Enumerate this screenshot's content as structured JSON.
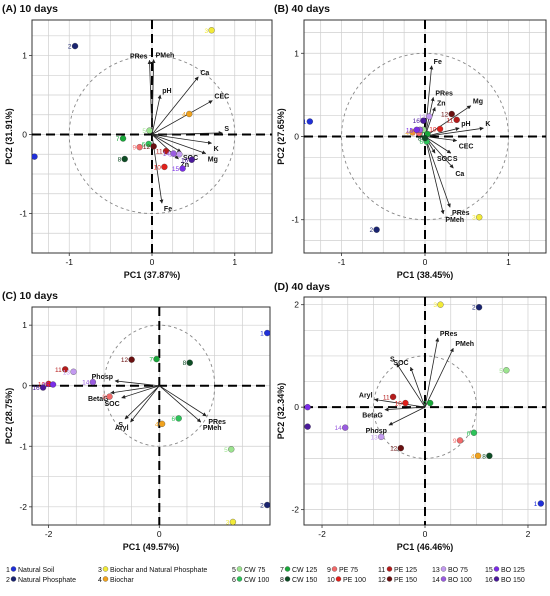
{
  "chart_data": [
    {
      "type": "scatter",
      "title": "(A) 10 days",
      "xlabel": "PC1 (37.87%)",
      "ylabel": "PC2 (31.91%)",
      "xlim": [
        -1.45,
        1.45
      ],
      "ylim": [
        -1.5,
        1.45
      ],
      "xticks": [
        -1,
        0,
        1
      ],
      "yticks": [
        -1,
        0,
        1
      ],
      "circle_radius": 1,
      "points": [
        {
          "id": "1",
          "x": -1.42,
          "y": -0.28
        },
        {
          "id": "2",
          "x": -0.93,
          "y": 1.12
        },
        {
          "id": "3",
          "x": 0.72,
          "y": 1.32
        },
        {
          "id": "4",
          "x": 0.45,
          "y": 0.26
        },
        {
          "id": "5",
          "x": -0.03,
          "y": 0.05
        },
        {
          "id": "6",
          "x": -0.04,
          "y": -0.12
        },
        {
          "id": "7",
          "x": -0.35,
          "y": -0.05
        },
        {
          "id": "8",
          "x": -0.33,
          "y": -0.31
        },
        {
          "id": "9",
          "x": -0.15,
          "y": -0.16
        },
        {
          "id": "10",
          "x": 0.15,
          "y": -0.41
        },
        {
          "id": "11",
          "x": 0.17,
          "y": -0.21
        },
        {
          "id": "12",
          "x": 0.02,
          "y": -0.15
        },
        {
          "id": "13",
          "x": 0.33,
          "y": -0.25
        },
        {
          "id": "14",
          "x": 0.26,
          "y": -0.24
        },
        {
          "id": "15",
          "x": 0.37,
          "y": -0.43
        },
        {
          "id": "16",
          "x": 0.48,
          "y": -0.32
        }
      ],
      "vectors": [
        {
          "label": "PRes",
          "x": -0.03,
          "y": 0.94
        },
        {
          "label": "PMeh",
          "x": 0.02,
          "y": 0.95
        },
        {
          "label": "Ca",
          "x": 0.56,
          "y": 0.73
        },
        {
          "label": "pH",
          "x": 0.1,
          "y": 0.5
        },
        {
          "label": "CEC",
          "x": 0.73,
          "y": 0.43
        },
        {
          "label": "S",
          "x": 0.85,
          "y": 0.02
        },
        {
          "label": "K",
          "x": 0.72,
          "y": -0.11
        },
        {
          "label": "Mg",
          "x": 0.65,
          "y": -0.24
        },
        {
          "label": "SOC",
          "x": 0.35,
          "y": -0.22
        },
        {
          "label": "Zn",
          "x": 0.32,
          "y": -0.31
        },
        {
          "label": "Fe",
          "x": 0.12,
          "y": -0.87
        }
      ]
    },
    {
      "type": "scatter",
      "title": "(B) 40 days",
      "xlabel": "PC1 (38.45%)",
      "ylabel": "PC2 (27.65%)",
      "xlim": [
        -1.45,
        1.45
      ],
      "ylim": [
        -1.4,
        1.4
      ],
      "xticks": [
        -1,
        0,
        1
      ],
      "yticks": [
        -1,
        0,
        1
      ],
      "circle_radius": 1,
      "points": [
        {
          "id": "1",
          "x": -1.38,
          "y": 0.18
        },
        {
          "id": "2",
          "x": -0.58,
          "y": -1.12
        },
        {
          "id": "3",
          "x": 0.65,
          "y": -0.97
        },
        {
          "id": "4",
          "x": -0.15,
          "y": 0.05
        },
        {
          "id": "5",
          "x": -0.02,
          "y": 0.08
        },
        {
          "id": "6",
          "x": 0.02,
          "y": -0.06
        },
        {
          "id": "7",
          "x": 0.03,
          "y": 0.03
        },
        {
          "id": "8",
          "x": 0.0,
          "y": -0.02
        },
        {
          "id": "9",
          "x": -0.07,
          "y": 0.04
        },
        {
          "id": "10",
          "x": 0.18,
          "y": 0.09
        },
        {
          "id": "11",
          "x": 0.38,
          "y": 0.2
        },
        {
          "id": "12",
          "x": 0.32,
          "y": 0.27
        },
        {
          "id": "13",
          "x": 0.05,
          "y": 0.24
        },
        {
          "id": "14",
          "x": -0.06,
          "y": 0.08
        },
        {
          "id": "15",
          "x": -0.1,
          "y": 0.08
        },
        {
          "id": "16",
          "x": -0.02,
          "y": 0.19
        }
      ],
      "vectors": [
        {
          "label": "Fe",
          "x": 0.08,
          "y": 0.85
        },
        {
          "label": "PRes",
          "x": 0.1,
          "y": 0.47
        },
        {
          "label": "Zn",
          "x": 0.12,
          "y": 0.35
        },
        {
          "label": "Mg",
          "x": 0.55,
          "y": 0.37
        },
        {
          "label": "K",
          "x": 0.7,
          "y": 0.1
        },
        {
          "label": "pH",
          "x": 0.41,
          "y": 0.1
        },
        {
          "label": "CEC",
          "x": 0.38,
          "y": -0.05
        },
        {
          "label": "SOC",
          "x": 0.12,
          "y": -0.2
        },
        {
          "label": "S",
          "x": 0.31,
          "y": -0.2
        },
        {
          "label": "Ca",
          "x": 0.34,
          "y": -0.38
        },
        {
          "label": "PRes",
          "x": 0.3,
          "y": -0.85
        },
        {
          "label": "PMeh",
          "x": 0.22,
          "y": -0.93
        }
      ]
    },
    {
      "type": "scatter",
      "title": "(C) 10 days",
      "xlabel": "PC1 (49.57%)",
      "ylabel": "PC2 (28.75%)",
      "xlim": [
        -2.3,
        2.0
      ],
      "ylim": [
        -2.3,
        1.3
      ],
      "xticks": [
        -2,
        0
      ],
      "yticks": [
        -2,
        -1,
        0,
        1
      ],
      "circle_radius": 1,
      "points": [
        {
          "id": "1",
          "x": 1.95,
          "y": 0.87
        },
        {
          "id": "2",
          "x": 1.95,
          "y": -1.97
        },
        {
          "id": "3",
          "x": 1.33,
          "y": -2.25
        },
        {
          "id": "4",
          "x": 0.05,
          "y": -0.63
        },
        {
          "id": "5",
          "x": 1.3,
          "y": -1.05
        },
        {
          "id": "6",
          "x": 0.35,
          "y": -0.54
        },
        {
          "id": "7",
          "x": -0.05,
          "y": 0.44
        },
        {
          "id": "8",
          "x": 0.55,
          "y": 0.38
        },
        {
          "id": "9",
          "x": -0.9,
          "y": -0.18
        },
        {
          "id": "10",
          "x": -2.0,
          "y": 0.03
        },
        {
          "id": "11",
          "x": -1.7,
          "y": 0.27
        },
        {
          "id": "12",
          "x": -0.5,
          "y": 0.43
        },
        {
          "id": "13",
          "x": -1.55,
          "y": 0.23
        },
        {
          "id": "14",
          "x": -1.2,
          "y": 0.06
        },
        {
          "id": "15",
          "x": -1.92,
          "y": 0.02
        },
        {
          "id": "16",
          "x": -2.1,
          "y": -0.03
        }
      ],
      "vectors": [
        {
          "label": "Phosp",
          "x": -0.8,
          "y": 0.08
        },
        {
          "label": "BetaG",
          "x": -0.88,
          "y": -0.12
        },
        {
          "label": "SOC",
          "x": -0.68,
          "y": -0.2
        },
        {
          "label": "S",
          "x": -0.62,
          "y": -0.55
        },
        {
          "label": "Aryl",
          "x": -0.52,
          "y": -0.6
        },
        {
          "label": "PRes",
          "x": 0.85,
          "y": -0.5
        },
        {
          "label": "PMeh",
          "x": 0.75,
          "y": -0.6
        }
      ]
    },
    {
      "type": "scatter",
      "title": "(D) 40 days",
      "xlabel": "PC1 (46.46%)",
      "ylabel": "PC2 (32.34%)",
      "xlim": [
        -2.35,
        2.35
      ],
      "ylim": [
        -2.3,
        2.15
      ],
      "xticks": [
        -2,
        0,
        2
      ],
      "yticks": [
        -2,
        0,
        2
      ],
      "circle_radius": 1,
      "points": [
        {
          "id": "1",
          "x": 2.25,
          "y": -1.88
        },
        {
          "id": "2",
          "x": 1.05,
          "y": 1.95
        },
        {
          "id": "3",
          "x": 0.3,
          "y": 2.0
        },
        {
          "id": "4",
          "x": 1.03,
          "y": -0.95
        },
        {
          "id": "5",
          "x": 1.58,
          "y": 0.72
        },
        {
          "id": "6",
          "x": 0.95,
          "y": -0.5
        },
        {
          "id": "7",
          "x": 0.1,
          "y": 0.08
        },
        {
          "id": "8",
          "x": 1.25,
          "y": -0.95
        },
        {
          "id": "9",
          "x": 0.68,
          "y": -0.65
        },
        {
          "id": "10",
          "x": -0.38,
          "y": 0.08
        },
        {
          "id": "11",
          "x": -0.62,
          "y": 0.2
        },
        {
          "id": "12",
          "x": -0.47,
          "y": -0.8
        },
        {
          "id": "13",
          "x": -0.85,
          "y": -0.58
        },
        {
          "id": "14",
          "x": -1.55,
          "y": -0.4
        },
        {
          "id": "15",
          "x": -2.28,
          "y": 0.0
        },
        {
          "id": "16",
          "x": -2.28,
          "y": -0.38
        }
      ],
      "vectors": [
        {
          "label": "PRes",
          "x": 0.25,
          "y": 1.35
        },
        {
          "label": "PMeh",
          "x": 0.55,
          "y": 1.15
        },
        {
          "label": "S",
          "x": -0.55,
          "y": 0.85
        },
        {
          "label": "SOC",
          "x": -0.28,
          "y": 0.78
        },
        {
          "label": "Aryl",
          "x": -0.98,
          "y": 0.15
        },
        {
          "label": "BetaG",
          "x": -0.78,
          "y": -0.05
        },
        {
          "label": "Phosp",
          "x": -0.7,
          "y": -0.35
        }
      ]
    }
  ],
  "legend": {
    "items": [
      {
        "id": "1",
        "label": "Natural Soil",
        "color": "#1f2fd8"
      },
      {
        "id": "2",
        "label": "Natural Phosphate",
        "color": "#1a2470"
      },
      {
        "id": "3",
        "label": "Biochar and Natural Phosphate",
        "color": "#f2ea38"
      },
      {
        "id": "4",
        "label": "Biochar",
        "color": "#f0a21e"
      },
      {
        "id": "5",
        "label": "CW 75",
        "color": "#9ce48f"
      },
      {
        "id": "6",
        "label": "CW 100",
        "color": "#2ec35a"
      },
      {
        "id": "7",
        "label": "CW 125",
        "color": "#19a83a"
      },
      {
        "id": "8",
        "label": "CW 150",
        "color": "#0e4d25"
      },
      {
        "id": "9",
        "label": "PE 75",
        "color": "#f26a6a"
      },
      {
        "id": "10",
        "label": "PE 100",
        "color": "#e0201b"
      },
      {
        "id": "11",
        "label": "PE 125",
        "color": "#b51b1b"
      },
      {
        "id": "12",
        "label": "PE 150",
        "color": "#6a1010"
      },
      {
        "id": "13",
        "label": "BO 75",
        "color": "#c39af0"
      },
      {
        "id": "14",
        "label": "BO 100",
        "color": "#9a5ce0"
      },
      {
        "id": "15",
        "label": "BO 125",
        "color": "#7a2ce8"
      },
      {
        "id": "16",
        "label": "BO 150",
        "color": "#4a1a9a"
      }
    ]
  }
}
